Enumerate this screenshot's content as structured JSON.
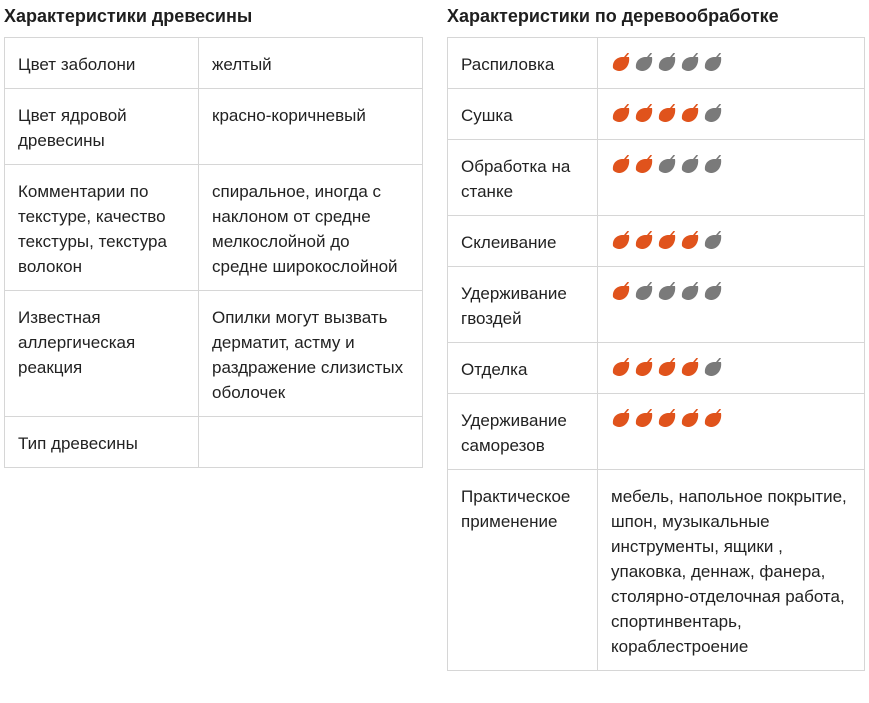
{
  "left": {
    "title": "Характеристики древесины",
    "rows": [
      {
        "label": "Цвет заболони",
        "value": "желтый"
      },
      {
        "label": "Цвет ядровой древесины",
        "value": "красно-коричневый"
      },
      {
        "label": "Комментарии по текстуре, качество текстуры, текстура волокон",
        "value": "спиральное, иногда с наклоном от средне мелкослойной до средне широкослойной"
      },
      {
        "label": "Известная аллергическая реакция",
        "value": "Опилки могут вызвать дерматит, астму и раздражение слизистых оболочек"
      },
      {
        "label": "Тип древесины",
        "value": ""
      }
    ]
  },
  "right": {
    "title": "Характеристики по деревообработке",
    "ratings": [
      {
        "label": "Распиловка",
        "score": 1,
        "max": 5
      },
      {
        "label": "Сушка",
        "score": 4,
        "max": 5
      },
      {
        "label": "Обработка на станке",
        "score": 2,
        "max": 5
      },
      {
        "label": "Склеивание",
        "score": 4,
        "max": 5
      },
      {
        "label": "Удерживание гвоздей",
        "score": 1,
        "max": 5
      },
      {
        "label": "Отделка",
        "score": 4,
        "max": 5
      },
      {
        "label": "Удерживание саморезов",
        "score": 5,
        "max": 5
      }
    ],
    "usage": {
      "label": "Практическое применение",
      "value": "мебель, напольное покрытие, шпон, музыкальные инструменты, ящики , упаковка, деннаж, фанера, столярно-отделочная работа, спортинвентарь, кораблестроение"
    }
  },
  "icon": "leaf-icon",
  "colors": {
    "active": "#e0531c",
    "inactive": "#7a7a7a",
    "border": "#d6d6d6"
  }
}
